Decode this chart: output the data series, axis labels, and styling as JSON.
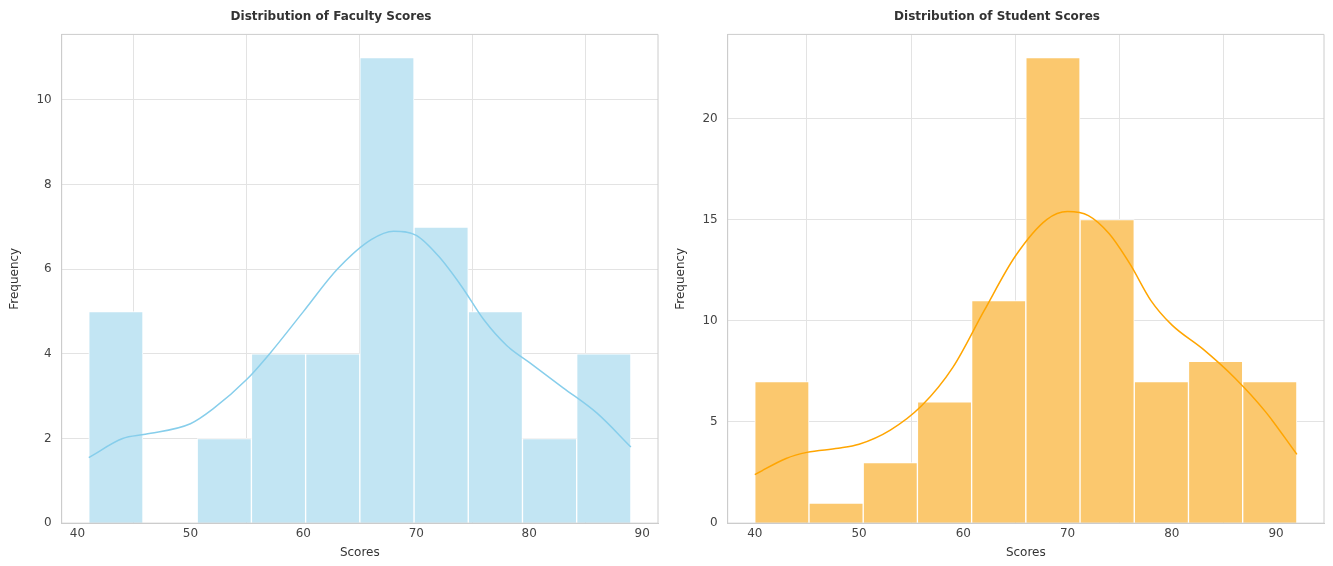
{
  "chart_data": [
    {
      "type": "histogram",
      "title": "Distribution of Faculty Scores",
      "xlabel": "Scores",
      "ylabel": "Frequency",
      "xlim": [
        38.6,
        91.4
      ],
      "ylim": [
        0,
        11.55
      ],
      "xticks": [
        40,
        50,
        60,
        70,
        80,
        90
      ],
      "yticks": [
        0,
        2,
        4,
        6,
        8,
        10
      ],
      "grid": true,
      "series": [
        {
          "type": "histogram",
          "color": "#c2e5f3",
          "bins": [
            41,
            45.8,
            50.6,
            55.4,
            60.2,
            65,
            69.8,
            74.6,
            79.4,
            84.2,
            89
          ],
          "values": [
            5,
            0,
            2,
            4,
            4,
            11,
            7,
            5,
            2,
            4
          ]
        },
        {
          "type": "line",
          "color": "#87ceeb",
          "x": [
            41,
            44,
            46,
            50,
            52,
            55,
            57,
            60,
            63,
            66,
            68,
            70,
            72,
            74,
            76,
            78,
            80,
            83,
            86,
            89
          ],
          "values": [
            1.55,
            2.0,
            2.1,
            2.35,
            2.7,
            3.4,
            4.0,
            5.0,
            6.0,
            6.7,
            6.9,
            6.8,
            6.3,
            5.6,
            4.8,
            4.2,
            3.8,
            3.2,
            2.6,
            1.8
          ]
        }
      ]
    },
    {
      "type": "histogram",
      "title": "Distribution of Student Scores",
      "xlabel": "Scores",
      "ylabel": "Frequency",
      "xlim": [
        37.4,
        94.6
      ],
      "ylim": [
        0,
        24.15
      ],
      "xticks": [
        40,
        50,
        60,
        70,
        80,
        90
      ],
      "yticks": [
        0,
        5,
        10,
        15,
        20
      ],
      "grid": true,
      "series": [
        {
          "type": "histogram",
          "color": "#fbc86e",
          "bins": [
            40,
            45.2,
            50.4,
            55.6,
            60.8,
            66,
            71.2,
            76.4,
            81.6,
            86.8,
            92
          ],
          "values": [
            7,
            1,
            3,
            6,
            11,
            23,
            15,
            7,
            8,
            7
          ]
        },
        {
          "type": "line",
          "color": "#ffa500",
          "x": [
            40,
            43,
            45,
            48,
            50,
            53,
            56,
            59,
            62,
            65,
            68,
            70,
            72,
            74,
            76,
            78,
            80,
            83,
            86,
            89,
            92
          ],
          "values": [
            2.4,
            3.2,
            3.5,
            3.7,
            3.9,
            4.6,
            5.8,
            7.7,
            10.5,
            13.2,
            15.0,
            15.4,
            15.2,
            14.3,
            12.8,
            11.0,
            9.8,
            8.6,
            7.2,
            5.5,
            3.4
          ]
        }
      ]
    }
  ]
}
